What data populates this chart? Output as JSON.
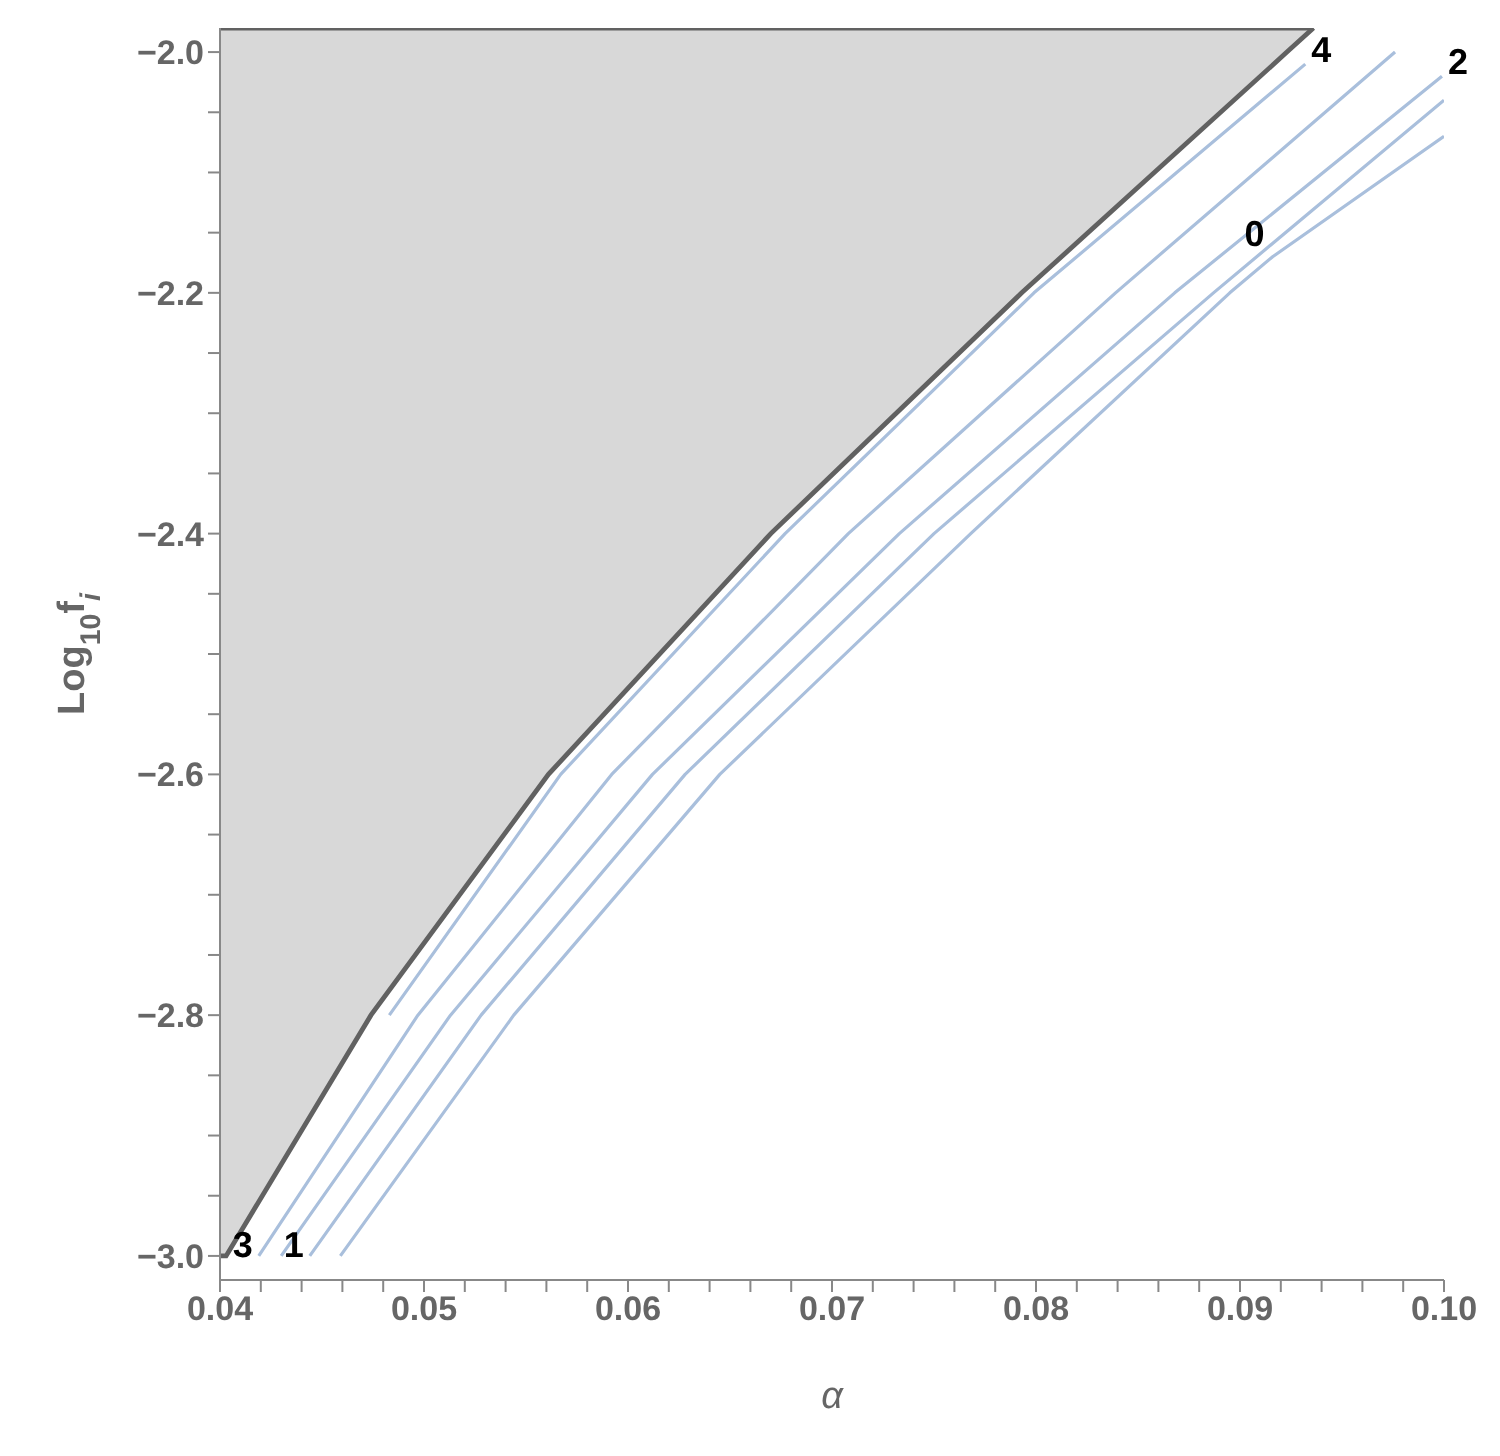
{
  "chart_data": {
    "type": "line",
    "xlabel": "α",
    "ylabel": "Log$_{10}$f$_{i}$",
    "xlim": [
      0.04,
      0.1
    ],
    "ylim": [
      -3.02,
      -1.98
    ],
    "xticks": [
      {
        "value": 0.04,
        "label": "0.04"
      },
      {
        "value": 0.042,
        "label": null
      },
      {
        "value": 0.044,
        "label": null
      },
      {
        "value": 0.046,
        "label": null
      },
      {
        "value": 0.048,
        "label": null
      },
      {
        "value": 0.05,
        "label": "0.05"
      },
      {
        "value": 0.052,
        "label": null
      },
      {
        "value": 0.054,
        "label": null
      },
      {
        "value": 0.056,
        "label": null
      },
      {
        "value": 0.058,
        "label": null
      },
      {
        "value": 0.06,
        "label": "0.06"
      },
      {
        "value": 0.062,
        "label": null
      },
      {
        "value": 0.064,
        "label": null
      },
      {
        "value": 0.066,
        "label": null
      },
      {
        "value": 0.068,
        "label": null
      },
      {
        "value": 0.07,
        "label": "0.07"
      },
      {
        "value": 0.072,
        "label": null
      },
      {
        "value": 0.074,
        "label": null
      },
      {
        "value": 0.076,
        "label": null
      },
      {
        "value": 0.078,
        "label": null
      },
      {
        "value": 0.08,
        "label": "0.08"
      },
      {
        "value": 0.082,
        "label": null
      },
      {
        "value": 0.084,
        "label": null
      },
      {
        "value": 0.086,
        "label": null
      },
      {
        "value": 0.088,
        "label": null
      },
      {
        "value": 0.09,
        "label": "0.09"
      },
      {
        "value": 0.092,
        "label": null
      },
      {
        "value": 0.094,
        "label": null
      },
      {
        "value": 0.096,
        "label": null
      },
      {
        "value": 0.098,
        "label": null
      },
      {
        "value": 0.1,
        "label": "0.10"
      }
    ],
    "yticks": [
      {
        "value": -3,
        "label": "−3.0"
      },
      {
        "value": -2.95,
        "label": null
      },
      {
        "value": -2.9,
        "label": null
      },
      {
        "value": -2.85,
        "label": null
      },
      {
        "value": -2.8,
        "label": "−2.8"
      },
      {
        "value": -2.75,
        "label": null
      },
      {
        "value": -2.7,
        "label": null
      },
      {
        "value": -2.65,
        "label": null
      },
      {
        "value": -2.6,
        "label": "−2.6"
      },
      {
        "value": -2.55,
        "label": null
      },
      {
        "value": -2.5,
        "label": null
      },
      {
        "value": -2.45,
        "label": null
      },
      {
        "value": -2.4,
        "label": "−2.4"
      },
      {
        "value": -2.35,
        "label": null
      },
      {
        "value": -2.3,
        "label": null
      },
      {
        "value": -2.25,
        "label": null
      },
      {
        "value": -2.2,
        "label": "−2.2"
      },
      {
        "value": -2.15,
        "label": null
      },
      {
        "value": -2.1,
        "label": null
      },
      {
        "value": -2.05,
        "label": null
      },
      {
        "value": -2,
        "label": "−2.0"
      }
    ],
    "marker": "none",
    "line_style": "solid",
    "series": [
      {
        "type": "area",
        "color": "#d8d8d8",
        "x": [
          0.04,
          0.0403,
          0.0474,
          0.0561,
          0.067,
          0.0793,
          0.0923,
          0.0936
        ],
        "values": [
          -3.0,
          -3.0,
          -2.8,
          -2.6,
          -2.4,
          -2.2,
          -2.0,
          -1.98
        ]
      },
      {
        "color": "#a9bfdc",
        "x": [
          0.0483,
          0.0567,
          0.0677,
          0.0799,
          0.0932
        ],
        "values": [
          -2.8,
          -2.6,
          -2.4,
          -2.2,
          -2.01
        ]
      },
      {
        "color": "#a9bfdc",
        "x": [
          0.0419,
          0.0497,
          0.0592,
          0.0708,
          0.0839,
          0.0976
        ],
        "values": [
          -3.0,
          -2.8,
          -2.6,
          -2.4,
          -2.2,
          -2.0
        ]
      },
      {
        "color": "#a9bfdc",
        "x": [
          0.043,
          0.0513,
          0.0612,
          0.0733,
          0.0868,
          0.0999
        ],
        "values": [
          -3.0,
          -2.8,
          -2.6,
          -2.4,
          -2.2,
          -2.02
        ]
      },
      {
        "color": "#a9bfdc",
        "x": [
          0.0444,
          0.0528,
          0.0628,
          0.075,
          0.0887,
          0.1
        ],
        "values": [
          -3.0,
          -2.8,
          -2.6,
          -2.4,
          -2.2,
          -2.04
        ]
      },
      {
        "color": "#a9bfdc",
        "x": [
          0.0459,
          0.0544,
          0.0645,
          0.0768,
          0.0895,
          0.0916,
          0.1
        ],
        "values": [
          -3.0,
          -2.8,
          -2.6,
          -2.4,
          -2.2,
          -2.17,
          -2.07
        ]
      }
    ],
    "annotations": [
      {
        "text": "3",
        "x": 0.0419,
        "y": -3.0
      },
      {
        "text": "1",
        "x": 0.0444,
        "y": -3.0
      },
      {
        "text": "4",
        "x": 0.0932,
        "y": -2.01
      },
      {
        "text": "2",
        "x": 0.0999,
        "y": -2.02
      },
      {
        "text": "0",
        "x": 0.0916,
        "y": -2.17
      }
    ]
  }
}
